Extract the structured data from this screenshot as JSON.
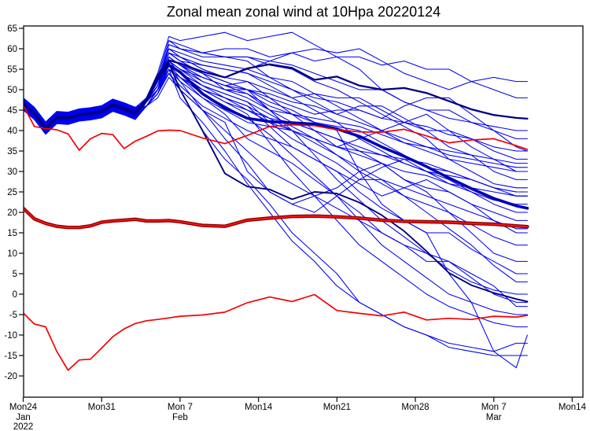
{
  "title": "Zonal mean zonal wind at 10Hpa 20220124",
  "chart_data": {
    "type": "line",
    "title": "Zonal mean zonal wind at 10Hpa 20220124",
    "xlabel": "",
    "ylabel": "",
    "ylim": [
      -20,
      65
    ],
    "y_axis": {
      "min": -20,
      "max": 65,
      "step": 5
    },
    "x_axis": {
      "start_date_label": "Mon24 Jan 2022",
      "tick_days": [
        0,
        7,
        14,
        21,
        28,
        35,
        42,
        49
      ],
      "tick_labels": [
        "Mon24",
        "Mon31",
        "Mon 7",
        "Mon14",
        "Mon21",
        "Mon28",
        "Mon 7",
        "Mon14"
      ],
      "month_sublabels": [
        "Jan",
        "",
        "Feb",
        "",
        "",
        "",
        "Mar",
        ""
      ],
      "year_sublabel": "2022",
      "grid": false,
      "legend": "none"
    },
    "days_main": [
      0,
      1,
      2,
      3,
      4,
      5,
      6,
      7,
      8,
      9,
      10,
      11,
      12,
      13,
      14,
      16,
      18,
      20,
      22,
      24,
      26,
      28,
      30,
      32,
      34,
      36,
      38,
      40,
      42,
      44,
      45
    ],
    "series": [
      {
        "name": "ensemble_mean",
        "role": "mean",
        "values": [
          46.5,
          44.2,
          40.4,
          43.2,
          43.1,
          43.8,
          44.2,
          44.6,
          46.3,
          45.4,
          44.3,
          47.5,
          52.5,
          56.0,
          54.3,
          49.0,
          45.5,
          43.0,
          42.2,
          41.9,
          41.6,
          40.4,
          38.6,
          36.0,
          33.7,
          31.2,
          28.4,
          25.8,
          23.4,
          21.6,
          21.0
        ]
      },
      {
        "name": "control_upper",
        "role": "navy-upper",
        "values": [
          46.7,
          44.4,
          40.8,
          43.4,
          43.2,
          44.0,
          44.3,
          44.8,
          46.5,
          45.6,
          44.5,
          47.8,
          53.5,
          57.2,
          56.4,
          54.4,
          53.0,
          55.2,
          56.2,
          55.3,
          52.4,
          53.2,
          51.0,
          50.0,
          50.4,
          49.2,
          47.2,
          45.2,
          43.8,
          43.1,
          42.9
        ]
      },
      {
        "name": "control_lower",
        "role": "navy-lower",
        "values": [
          46.4,
          44.0,
          40.2,
          43.0,
          42.9,
          43.6,
          44.0,
          44.4,
          46.0,
          45.1,
          44.0,
          47.2,
          53.0,
          56.5,
          50.0,
          40.0,
          29.5,
          26.3,
          25.6,
          23.2,
          25.0,
          24.6,
          22.4,
          19.3,
          15.4,
          10.5,
          5.2,
          2.2,
          0.3,
          -1.2,
          -1.8
        ]
      },
      {
        "name": "climatology_upper",
        "role": "red-thin",
        "values": [
          46.2,
          41.0,
          40.5,
          40.2,
          39.2,
          35.2,
          38.0,
          39.3,
          39.0,
          35.6,
          37.4,
          38.6,
          39.9,
          40.1,
          40.0,
          38.2,
          36.8,
          38.8,
          41.0,
          41.4,
          41.2,
          40.2,
          39.7,
          39.6,
          40.3,
          38.7,
          37.0,
          37.7,
          38.0,
          36.3,
          35.4
        ]
      },
      {
        "name": "climatology_lower",
        "role": "red-thin",
        "values": [
          -4.6,
          -7.3,
          -8.0,
          -14.0,
          -18.6,
          -16.1,
          -15.9,
          -13.2,
          -10.4,
          -8.5,
          -7.2,
          -6.5,
          -6.2,
          -5.8,
          -5.4,
          -5.1,
          -4.4,
          -2.1,
          -0.7,
          -1.8,
          -0.1,
          -4.0,
          -4.7,
          -5.3,
          -4.4,
          -6.3,
          -5.9,
          -6.2,
          -5.4,
          -5.6,
          -5.2
        ]
      },
      {
        "name": "climatology_mean",
        "role": "clim",
        "values": [
          21.0,
          18.4,
          17.3,
          16.6,
          16.3,
          16.3,
          16.7,
          17.6,
          17.9,
          18.1,
          18.3,
          17.9,
          17.9,
          18.0,
          17.7,
          16.8,
          16.6,
          18.1,
          18.6,
          19.0,
          19.1,
          18.9,
          18.6,
          18.1,
          17.8,
          17.7,
          17.6,
          17.3,
          17.1,
          16.7,
          16.5
        ]
      }
    ],
    "members": {
      "trunk_days": [
        0,
        1,
        2,
        3,
        4,
        5,
        6,
        7,
        8,
        9,
        10
      ],
      "trunk": [
        46.5,
        44.2,
        40.6,
        43.2,
        43.0,
        43.8,
        44.1,
        44.6,
        46.2,
        45.3,
        44.2
      ],
      "offsets": [
        0,
        -1.2,
        0.8,
        1.3,
        -0.5,
        0.4,
        -1.5,
        1.0,
        -0.8,
        1.5,
        0.2,
        -1.0,
        0.6,
        -0.3,
        1.2,
        -1.4,
        0.9,
        0.3,
        -0.6,
        1.4,
        -1.1,
        0.7,
        -0.2,
        1.1,
        -1.3,
        0.5,
        -0.9,
        1.2,
        0.1,
        -0.7,
        1.0,
        -0.4,
        0.8,
        -1.2
      ],
      "tail_days": [
        11,
        12,
        13,
        14,
        16,
        18,
        20,
        22,
        24,
        26,
        28,
        30,
        32,
        34,
        36,
        38,
        40,
        42,
        44,
        45
      ],
      "tails": [
        [
          48,
          53,
          62,
          61,
          59,
          60,
          60,
          58,
          59,
          57,
          58,
          58,
          56,
          57,
          55,
          55,
          52,
          50,
          48,
          48
        ],
        [
          47,
          52,
          60,
          58,
          55,
          53,
          55,
          57,
          59,
          60,
          59,
          60,
          57,
          54,
          52,
          50,
          52,
          53,
          52,
          52
        ],
        [
          48,
          54,
          63,
          62,
          63,
          64,
          62,
          63,
          64,
          61,
          58,
          55,
          50,
          47,
          45,
          45,
          42,
          41,
          40,
          40
        ],
        [
          47,
          51,
          58,
          56,
          52,
          50,
          50,
          48,
          46,
          44,
          45,
          45,
          43,
          46,
          48,
          48,
          44,
          40,
          36,
          35
        ],
        [
          46,
          50,
          57,
          55,
          53,
          51,
          52,
          50,
          48,
          49,
          48,
          48,
          45,
          42,
          40,
          40,
          36,
          33,
          30,
          30
        ],
        [
          47,
          52,
          59,
          57,
          54,
          50,
          48,
          45,
          44,
          42,
          41,
          40,
          37,
          34,
          31,
          30,
          28,
          26,
          25,
          25
        ],
        [
          46,
          49,
          56,
          54,
          50,
          47,
          45,
          43,
          42,
          40,
          38,
          35,
          32,
          28,
          26,
          25,
          22,
          20,
          18,
          18
        ],
        [
          47,
          50,
          55,
          52,
          48,
          45,
          42,
          41,
          40,
          38,
          34,
          30,
          27,
          24,
          22,
          20,
          17,
          14,
          12,
          12
        ],
        [
          46,
          50,
          54,
          51,
          46,
          43,
          40,
          38,
          36,
          33,
          30,
          25,
          21,
          18,
          15,
          15,
          11,
          8,
          5,
          5
        ],
        [
          47,
          51,
          56,
          53,
          48,
          44,
          38,
          35,
          32,
          28,
          24,
          20,
          15,
          12,
          8,
          8,
          4,
          0,
          -2,
          -2
        ],
        [
          46,
          49,
          54,
          50,
          40,
          33,
          28,
          22,
          15,
          10,
          5,
          -2,
          -5,
          -8,
          -10,
          -13,
          -14,
          -15,
          -15,
          -15
        ],
        [
          47,
          50,
          55,
          48,
          42,
          35,
          27,
          20,
          13,
          8,
          2,
          -2,
          -5,
          -8,
          -10,
          -12,
          -13,
          -14,
          -12,
          -12
        ],
        [
          47,
          51,
          57,
          54,
          50,
          47,
          44,
          37,
          30,
          24,
          18,
          12,
          8,
          4,
          0,
          -3,
          -5,
          -7,
          -8,
          -8
        ],
        [
          46,
          50,
          58,
          56,
          53,
          51,
          50,
          45,
          40,
          34,
          28,
          23,
          18,
          14,
          10,
          6,
          3,
          1,
          0,
          0
        ],
        [
          47,
          50,
          56,
          52,
          45,
          38,
          32,
          25,
          22,
          20,
          24,
          28,
          31,
          33,
          30,
          28,
          25,
          22,
          20,
          20
        ],
        [
          48,
          52,
          60,
          58,
          55,
          53,
          52,
          48,
          44,
          40,
          36,
          38,
          40,
          42,
          44,
          40,
          38,
          35,
          33,
          33
        ],
        [
          47,
          52,
          61,
          60,
          58,
          58,
          57,
          53,
          50,
          47,
          44,
          46,
          46,
          43,
          40,
          36,
          34,
          30,
          28,
          28
        ],
        [
          46,
          49,
          55,
          53,
          50,
          48,
          46,
          41,
          36,
          33,
          30,
          27,
          24,
          26,
          28,
          25,
          22,
          18,
          15,
          15
        ],
        [
          47,
          51,
          59,
          57,
          56,
          55,
          54,
          51,
          48,
          45,
          42,
          38,
          35,
          32,
          30,
          27,
          25,
          23,
          22,
          22
        ],
        [
          48,
          53,
          62,
          60,
          59,
          58,
          58,
          56,
          55,
          52,
          50,
          47,
          44,
          41,
          38,
          33,
          30,
          27,
          26,
          26
        ],
        [
          46,
          49,
          54,
          50,
          45,
          42,
          30,
          25,
          22,
          24,
          26,
          30,
          32,
          28,
          25,
          20,
          15,
          10,
          8,
          8
        ],
        [
          47,
          50,
          57,
          55,
          51,
          49,
          47,
          42,
          38,
          35,
          32,
          28,
          28,
          24,
          20,
          16,
          12,
          7,
          3,
          3
        ],
        [
          46,
          50,
          58,
          56,
          53,
          51,
          49,
          45,
          42,
          40,
          38,
          36,
          34,
          33,
          32,
          30,
          28,
          26,
          24,
          24
        ],
        [
          47,
          52,
          60,
          59,
          57,
          56,
          55,
          53,
          52,
          49,
          46,
          43,
          40,
          37,
          35,
          33,
          32,
          31,
          30,
          30
        ],
        [
          47,
          51,
          59,
          57,
          54,
          52,
          50,
          47,
          45,
          42,
          40,
          30,
          22,
          18,
          15,
          5,
          -2,
          -14,
          -18,
          -10
        ],
        [
          46,
          49,
          55,
          53,
          49,
          46,
          43,
          39,
          34,
          29,
          24,
          18,
          12,
          8,
          4,
          0,
          -2,
          -4,
          -5,
          -5
        ],
        [
          48,
          52,
          61,
          60,
          59,
          58,
          58,
          57,
          56,
          54,
          52,
          50,
          50,
          47,
          45,
          43,
          42,
          40,
          38,
          38
        ],
        [
          46,
          48,
          53,
          50,
          45,
          40,
          35,
          30,
          27,
          24,
          21,
          18,
          15,
          12,
          10,
          8,
          5,
          2,
          -3,
          -3
        ],
        [
          47,
          51,
          58,
          56,
          54,
          52,
          50,
          49,
          47,
          46,
          44,
          42,
          40,
          38,
          36,
          34,
          33,
          32,
          31,
          31
        ],
        [
          46,
          50,
          56,
          54,
          51,
          49,
          47,
          44,
          41,
          38,
          36,
          34,
          32,
          30,
          29,
          27,
          26,
          25,
          24,
          24
        ],
        [
          47,
          50,
          57,
          55,
          52,
          50,
          49,
          46,
          44,
          43,
          42,
          41,
          39,
          37,
          36,
          35,
          34,
          33,
          32,
          32
        ],
        [
          46,
          49,
          55,
          53,
          50,
          48,
          46,
          43,
          40,
          37,
          34,
          31,
          28,
          26,
          24,
          22,
          20,
          18,
          16,
          16
        ],
        [
          47,
          52,
          59,
          58,
          56,
          55,
          54,
          52,
          50,
          48,
          47,
          45,
          43,
          42,
          41,
          39,
          38,
          36,
          35,
          35
        ],
        [
          46,
          50,
          57,
          54,
          51,
          48,
          45,
          42,
          40,
          38,
          36,
          35,
          34,
          32,
          30,
          29,
          28,
          26,
          25,
          25
        ]
      ]
    },
    "colors": {
      "member_blue": "#0000f2",
      "mean_blue": "#0000b4",
      "navy": "#000080",
      "red": "#f50000",
      "clim_dark_red": "#8b0000"
    }
  }
}
